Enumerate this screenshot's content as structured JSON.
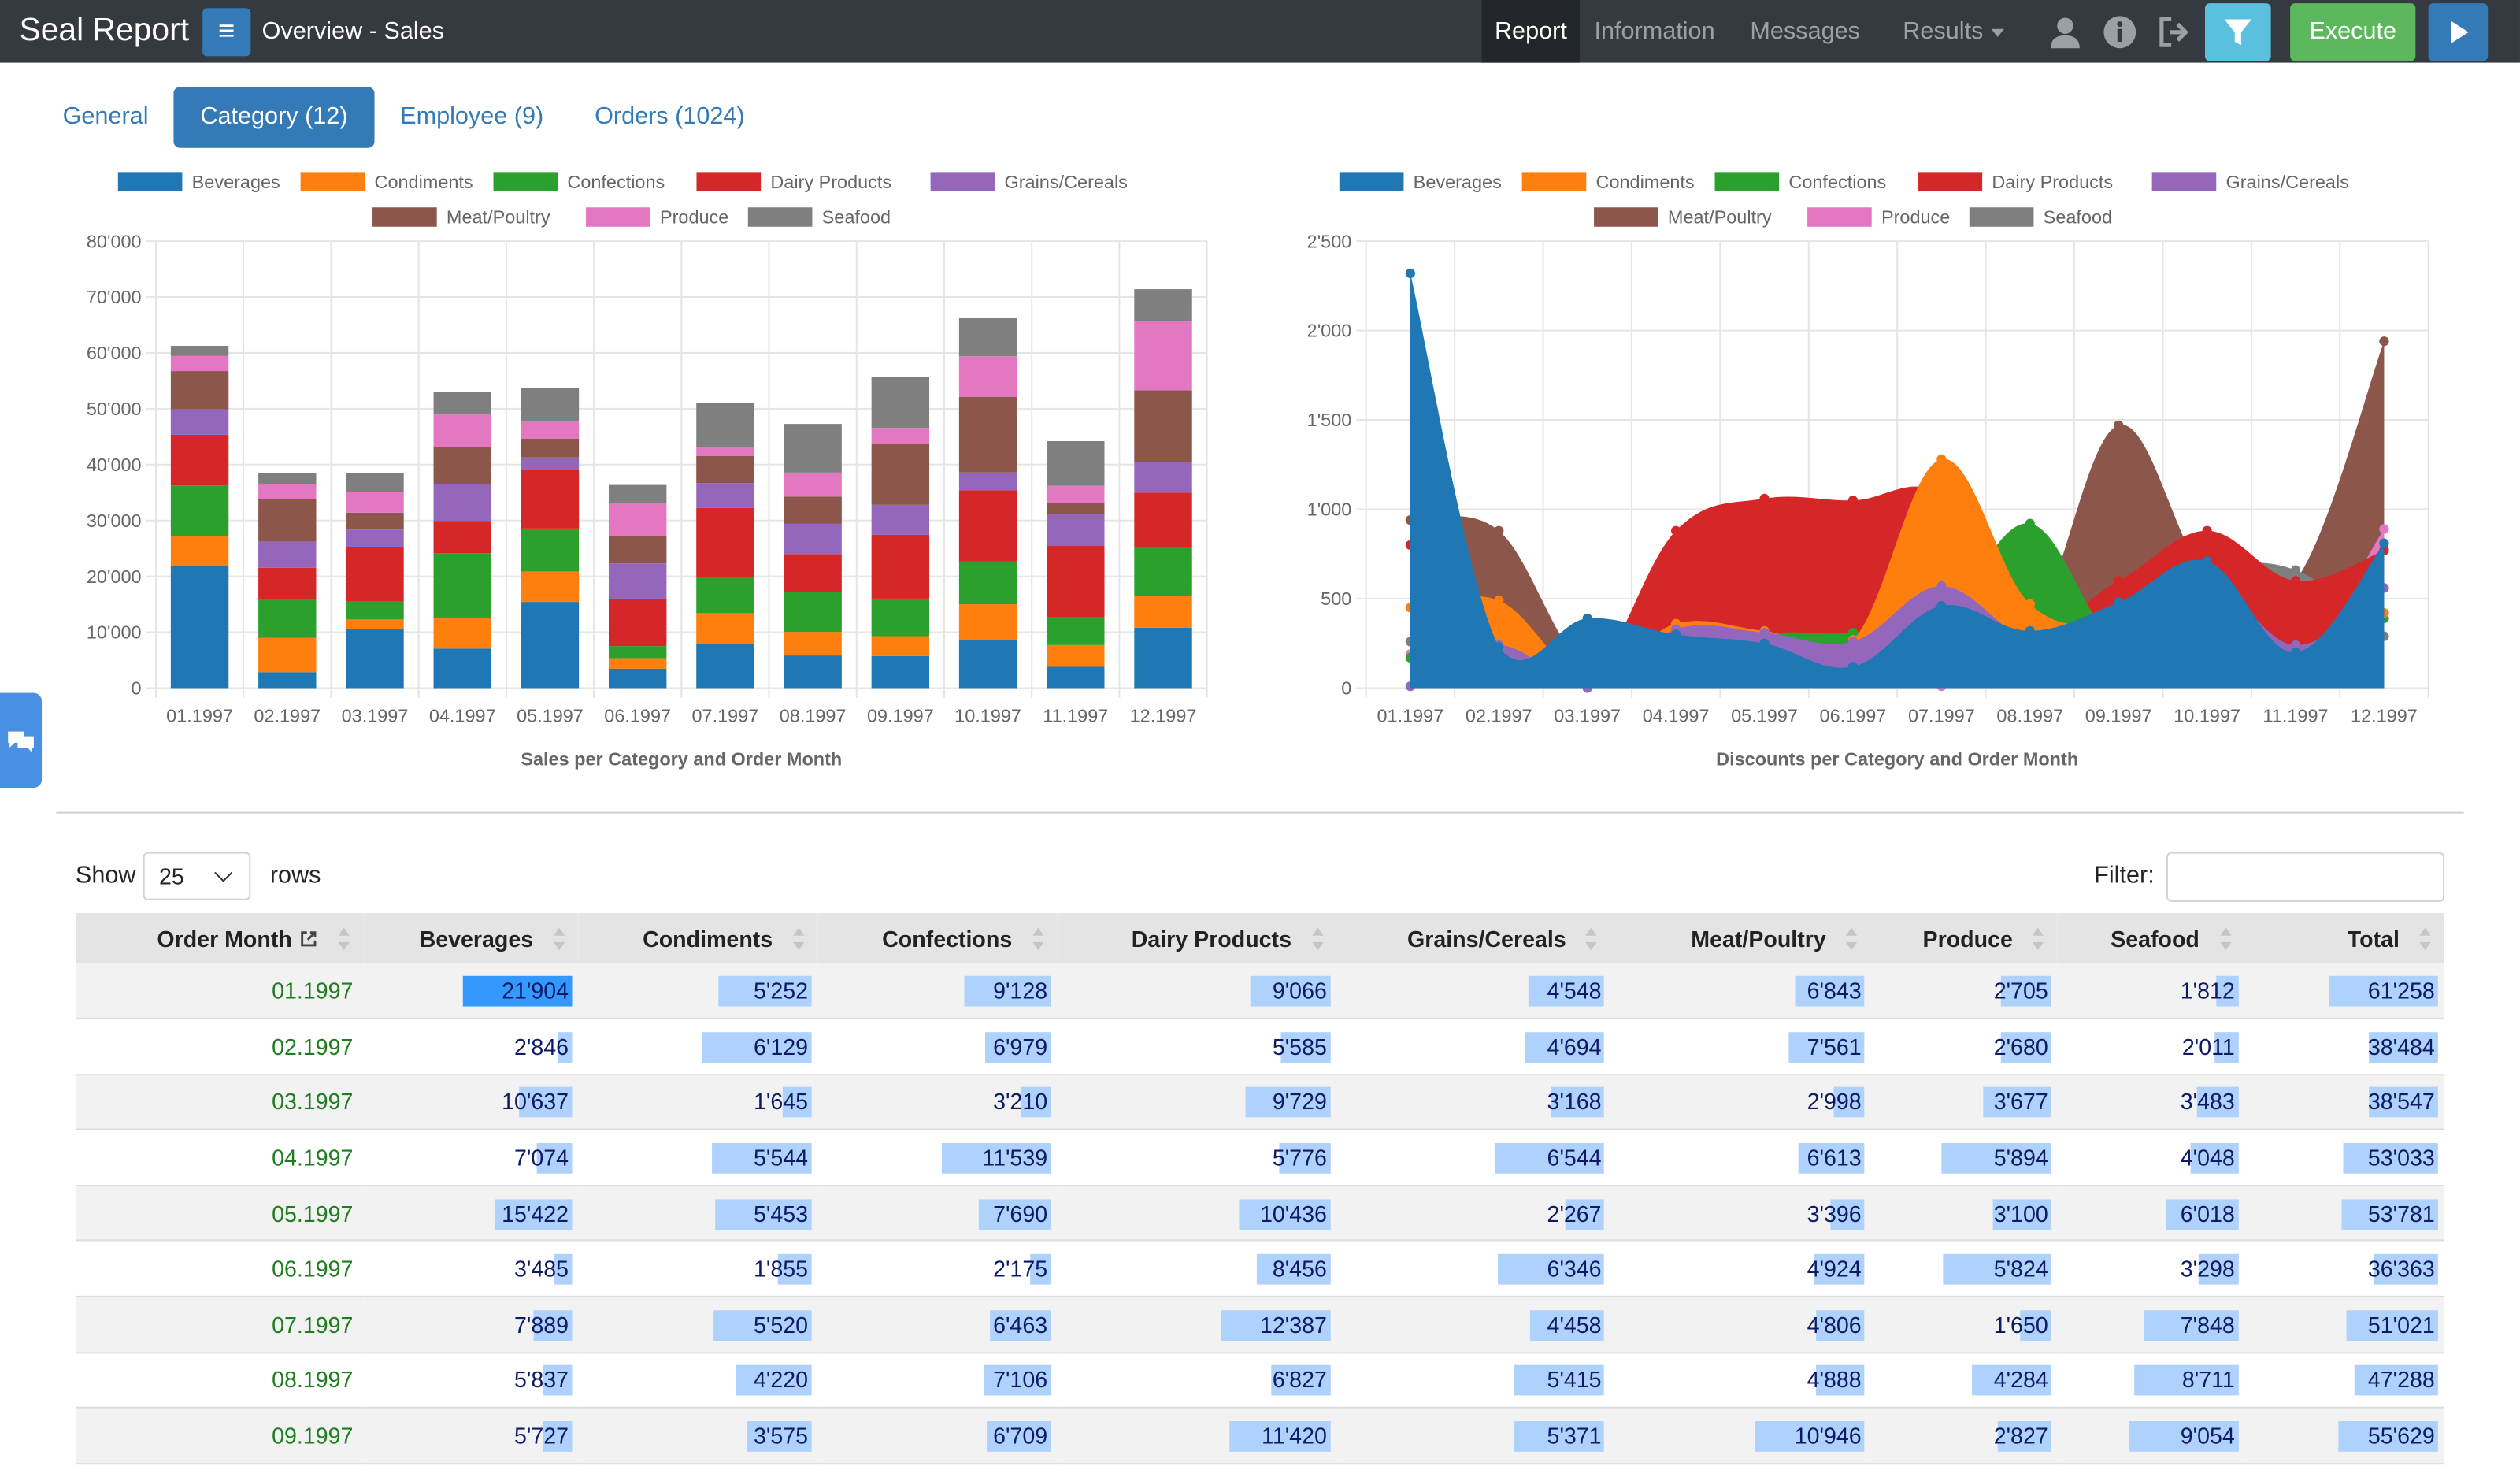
{
  "navbar": {
    "brand": "Seal Report",
    "title": "Overview - Sales",
    "links": [
      "Report",
      "Information",
      "Messages",
      "Results"
    ],
    "active": "Report",
    "execute_label": "Execute"
  },
  "tabs": [
    "General",
    "Category (12)",
    "Employee (9)",
    "Orders (1024)"
  ],
  "active_tab": "Category (12)",
  "colors": {
    "Beverages": "#1f77b4",
    "Condiments": "#ff7f0e",
    "Confections": "#2ca02c",
    "Dairy Products": "#d62728",
    "Grains/Cereals": "#9467bd",
    "Meat/Poultry": "#8c564b",
    "Produce": "#e377c2",
    "Seafood": "#7f7f7f"
  },
  "chart_data": [
    {
      "type": "bar",
      "stacked": true,
      "title": "Sales per Category and Order Month",
      "categories": [
        "01.1997",
        "02.1997",
        "03.1997",
        "04.1997",
        "05.1997",
        "06.1997",
        "07.1997",
        "08.1997",
        "09.1997",
        "10.1997",
        "11.1997",
        "12.1997"
      ],
      "ylim": [
        0,
        80000
      ],
      "yticks": [
        "0",
        "10'000",
        "20'000",
        "30'000",
        "40'000",
        "50'000",
        "60'000",
        "70'000",
        "80'000"
      ],
      "legend_position": "top",
      "grid": true,
      "series": [
        {
          "name": "Beverages",
          "values": [
            21904,
            2846,
            10637,
            7074,
            15422,
            3485,
            7889,
            5837,
            5727,
            8600,
            3800,
            10800
          ]
        },
        {
          "name": "Condiments",
          "values": [
            5252,
            6129,
            1645,
            5544,
            5453,
            1855,
            5520,
            4220,
            3575,
            6400,
            3900,
            5700
          ]
        },
        {
          "name": "Confections",
          "values": [
            9128,
            6979,
            3210,
            11539,
            7690,
            2175,
            6463,
            7106,
            6709,
            7700,
            5000,
            8700
          ]
        },
        {
          "name": "Dairy Products",
          "values": [
            9066,
            5585,
            9729,
            5776,
            10436,
            8456,
            12387,
            6827,
            11420,
            12700,
            12800,
            9800
          ]
        },
        {
          "name": "Grains/Cereals",
          "values": [
            4548,
            4694,
            3168,
            6544,
            2267,
            6346,
            4458,
            5415,
            5371,
            3200,
            5600,
            5400
          ]
        },
        {
          "name": "Meat/Poultry",
          "values": [
            6843,
            7561,
            2998,
            6613,
            3396,
            4924,
            4806,
            4888,
            10946,
            13500,
            2000,
            12900
          ]
        },
        {
          "name": "Produce",
          "values": [
            2705,
            2680,
            3677,
            5894,
            3100,
            5824,
            1650,
            4284,
            2827,
            7300,
            3100,
            12400
          ]
        },
        {
          "name": "Seafood",
          "values": [
            1812,
            2011,
            3483,
            4048,
            6018,
            3298,
            7848,
            8711,
            9054,
            6800,
            8000,
            5700
          ]
        }
      ]
    },
    {
      "type": "area",
      "title": "Discounts per Category and Order Month",
      "categories": [
        "01.1997",
        "02.1997",
        "03.1997",
        "04.1997",
        "05.1997",
        "06.1997",
        "07.1997",
        "08.1997",
        "09.1997",
        "10.1997",
        "11.1997",
        "12.1997"
      ],
      "ylim": [
        0,
        2500
      ],
      "yticks": [
        "0",
        "500",
        "1'000",
        "1'500",
        "2'000",
        "2'500"
      ],
      "legend_position": "top",
      "grid": true,
      "series": [
        {
          "name": "Meat/Poultry",
          "values": [
            940,
            880,
            120,
            360,
            260,
            150,
            450,
            330,
            1470,
            630,
            600,
            1940
          ]
        },
        {
          "name": "Seafood",
          "values": [
            260,
            150,
            300,
            400,
            320,
            210,
            560,
            360,
            420,
            660,
            660,
            290
          ]
        },
        {
          "name": "Produce",
          "values": [
            190,
            100,
            10,
            130,
            100,
            90,
            10,
            60,
            90,
            140,
            150,
            890
          ]
        },
        {
          "name": "Dairy Products",
          "values": [
            800,
            300,
            50,
            880,
            1060,
            1050,
            1080,
            380,
            600,
            880,
            600,
            770
          ]
        },
        {
          "name": "Confections",
          "values": [
            170,
            120,
            100,
            150,
            300,
            310,
            400,
            920,
            250,
            420,
            170,
            390
          ]
        },
        {
          "name": "Condiments",
          "values": [
            450,
            490,
            60,
            360,
            320,
            270,
            1280,
            470,
            380,
            580,
            210,
            420
          ]
        },
        {
          "name": "Grains/Cereals",
          "values": [
            10,
            240,
            0,
            330,
            310,
            260,
            570,
            270,
            340,
            600,
            240,
            560
          ]
        },
        {
          "name": "Beverages",
          "values": [
            2320,
            230,
            390,
            300,
            250,
            120,
            460,
            320,
            480,
            710,
            200,
            810
          ]
        }
      ]
    }
  ],
  "table": {
    "show_label": "Show",
    "show_value": "25",
    "rows_label": "rows",
    "filter_label": "Filter:",
    "columns": [
      "Order Month",
      "Beverages",
      "Condiments",
      "Confections",
      "Dairy Products",
      "Grains/Cereals",
      "Meat/Poultry",
      "Produce",
      "Seafood",
      "Total"
    ],
    "rows": [
      [
        "01.1997",
        "21'904",
        "5'252",
        "9'128",
        "9'066",
        "4'548",
        "6'843",
        "2'705",
        "1'812",
        "61'258"
      ],
      [
        "02.1997",
        "2'846",
        "6'129",
        "6'979",
        "5'585",
        "4'694",
        "7'561",
        "2'680",
        "2'011",
        "38'484"
      ],
      [
        "03.1997",
        "10'637",
        "1'645",
        "3'210",
        "9'729",
        "3'168",
        "2'998",
        "3'677",
        "3'483",
        "38'547"
      ],
      [
        "04.1997",
        "7'074",
        "5'544",
        "11'539",
        "5'776",
        "6'544",
        "6'613",
        "5'894",
        "4'048",
        "53'033"
      ],
      [
        "05.1997",
        "15'422",
        "5'453",
        "7'690",
        "10'436",
        "2'267",
        "3'396",
        "3'100",
        "6'018",
        "53'781"
      ],
      [
        "06.1997",
        "3'485",
        "1'855",
        "2'175",
        "8'456",
        "6'346",
        "4'924",
        "5'824",
        "3'298",
        "36'363"
      ],
      [
        "07.1997",
        "7'889",
        "5'520",
        "6'463",
        "12'387",
        "4'458",
        "4'806",
        "1'650",
        "7'848",
        "51'021"
      ],
      [
        "08.1997",
        "5'837",
        "4'220",
        "7'106",
        "6'827",
        "5'415",
        "4'888",
        "4'284",
        "8'711",
        "47'288"
      ],
      [
        "09.1997",
        "5'727",
        "3'575",
        "6'709",
        "11'420",
        "5'371",
        "10'946",
        "2'827",
        "9'054",
        "55'629"
      ]
    ]
  }
}
